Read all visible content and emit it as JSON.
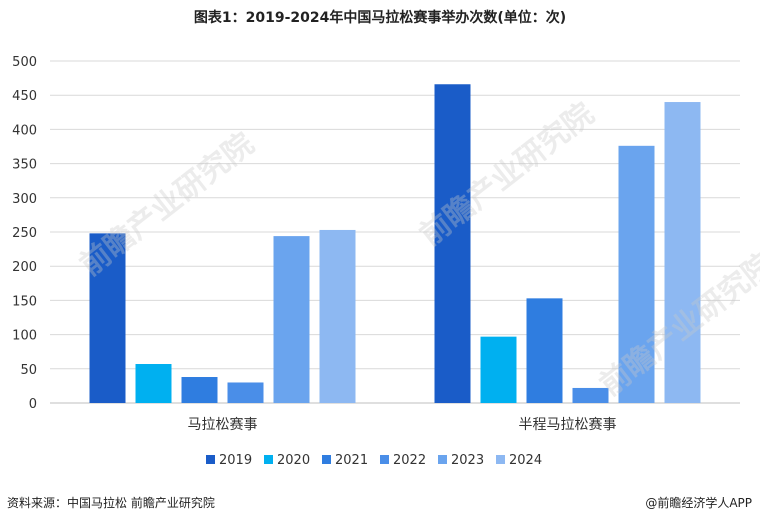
{
  "title": "图表1：2019-2024年中国马拉松赛事举办次数(单位：次)",
  "source": "资料来源：中国马拉松 前瞻产业研究院",
  "copyright": "@前瞻经济学人APP",
  "watermark": "前瞻产业研究院",
  "chart_data": {
    "type": "bar",
    "categories": [
      "马拉松赛事",
      "半程马拉松赛事"
    ],
    "series": [
      {
        "name": "2019",
        "color": "#1a5cc8",
        "values": [
          248,
          466
        ]
      },
      {
        "name": "2020",
        "color": "#00b0f0",
        "values": [
          57,
          97
        ]
      },
      {
        "name": "2021",
        "color": "#2f7de0",
        "values": [
          38,
          153
        ]
      },
      {
        "name": "2022",
        "color": "#4a8ee8",
        "values": [
          30,
          22
        ]
      },
      {
        "name": "2023",
        "color": "#6aa4ee",
        "values": [
          244,
          376
        ]
      },
      {
        "name": "2024",
        "color": "#8db8f2",
        "values": [
          253,
          440
        ]
      }
    ],
    "ylim": [
      0,
      500
    ],
    "yticks": [
      "0",
      "50",
      "100",
      "150",
      "200",
      "250",
      "300",
      "350",
      "400",
      "450",
      "500"
    ],
    "grid": true,
    "legend_position": "bottom"
  }
}
